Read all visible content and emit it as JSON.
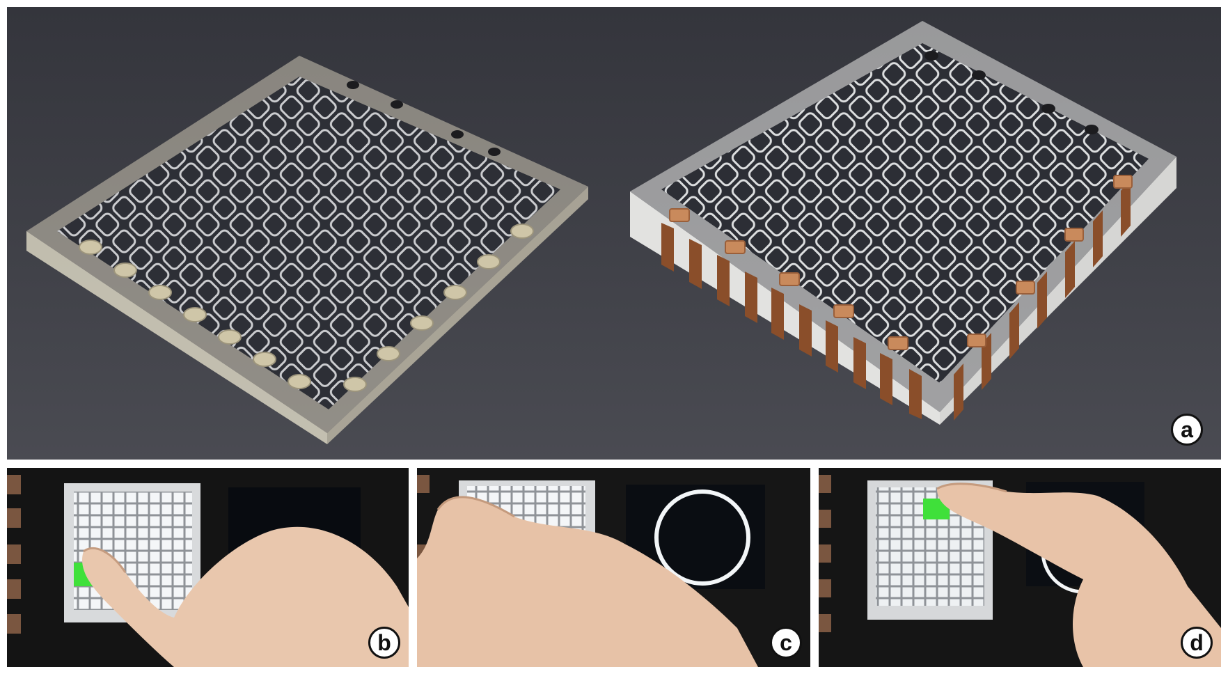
{
  "figure": {
    "panels": [
      {
        "id": "a",
        "label": "a",
        "description_icon": "prototype-photo"
      },
      {
        "id": "b",
        "label": "b",
        "description_icon": "touch-demo-photo"
      },
      {
        "id": "c",
        "label": "c",
        "description_icon": "touch-demo-photo"
      },
      {
        "id": "d",
        "label": "d",
        "description_icon": "touch-demo-photo"
      }
    ]
  },
  "colors": {
    "background_a": "#3f4047",
    "copper": "#a65e32",
    "grid_light": "#e9ecef",
    "highlight_green": "#3fe03a",
    "dark_stage": "#141414"
  }
}
